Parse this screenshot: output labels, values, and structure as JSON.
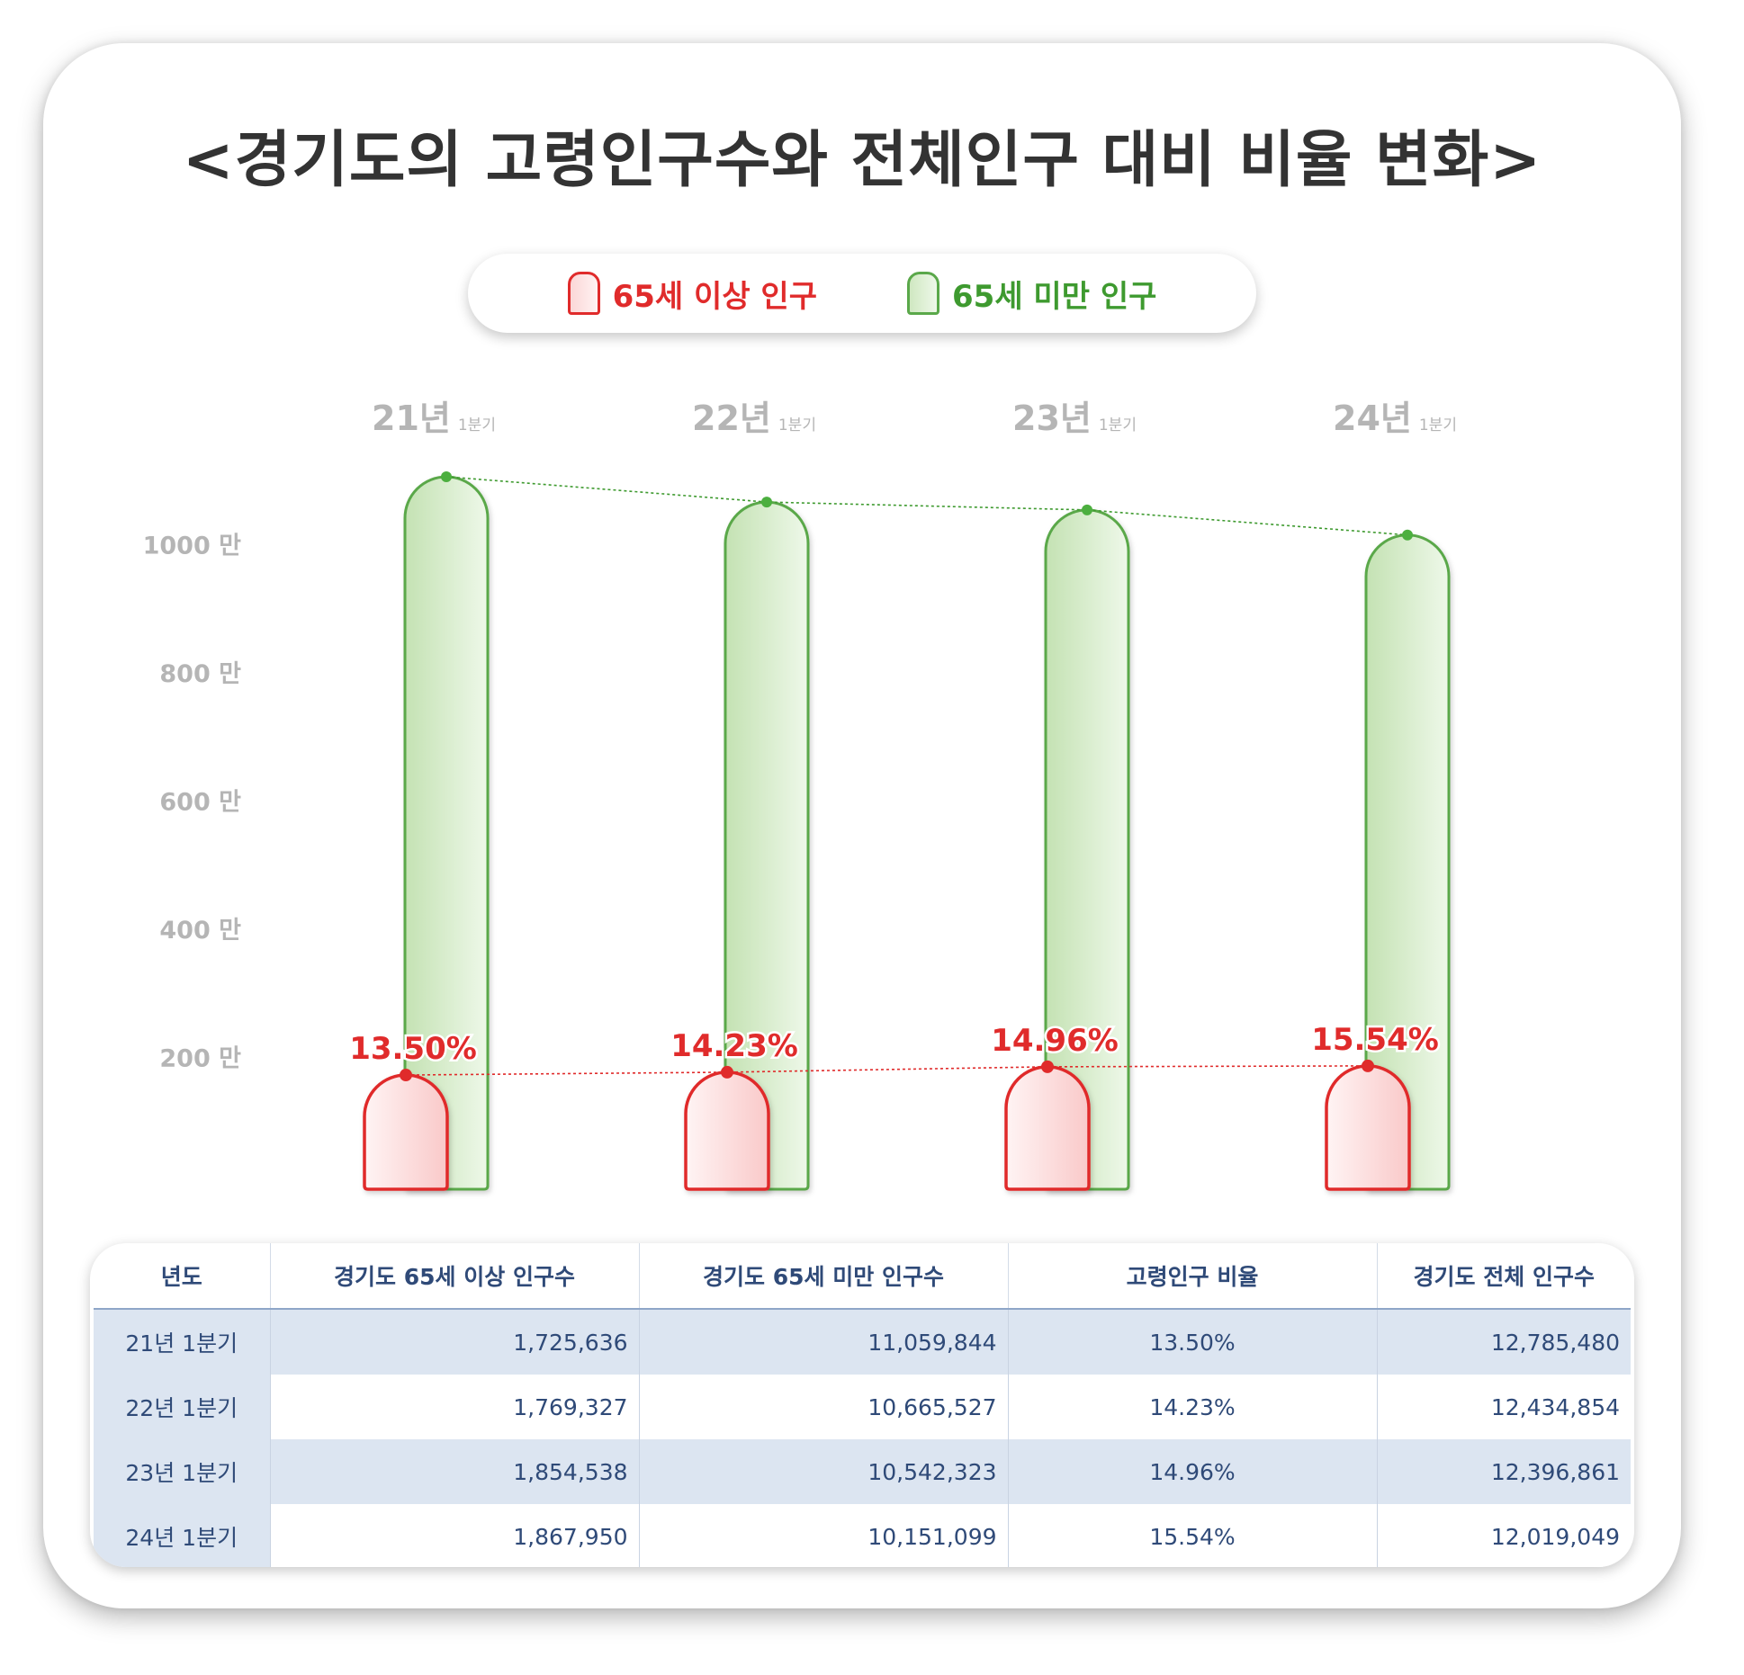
{
  "title": "<경기도의 고령인구수와 전체인구 대비 비율 변화>",
  "legend": {
    "elderly": "65세 이상 인구",
    "non_elderly": "65세 미만 인구"
  },
  "colors": {
    "elderly_stroke": "#e02b2b",
    "elderly_fill": "#fbd7d7",
    "non_elderly_stroke": "#5aa84a",
    "non_elderly_fill": "#cfe8c1",
    "axis_text": "#b5b5b5",
    "table_text": "#2f4a78",
    "table_band": "#dce5f1"
  },
  "chart_data": {
    "type": "bar",
    "categories": [
      {
        "year": "21년",
        "quarter": "1분기"
      },
      {
        "year": "22년",
        "quarter": "1분기"
      },
      {
        "year": "23년",
        "quarter": "1분기"
      },
      {
        "year": "24년",
        "quarter": "1분기"
      }
    ],
    "series": [
      {
        "name": "65세 이상 인구",
        "values": [
          1725636,
          1769327,
          1854538,
          1867950
        ]
      },
      {
        "name": "65세 미만 인구",
        "values": [
          11059844,
          10665527,
          10542323,
          10151099
        ]
      }
    ],
    "ratio_labels": [
      "13.50%",
      "14.23%",
      "14.96%",
      "15.54%"
    ],
    "y_ticks": [
      {
        "value": 2000000,
        "label": "200",
        "unit": "만"
      },
      {
        "value": 4000000,
        "label": "400",
        "unit": "만"
      },
      {
        "value": 6000000,
        "label": "600",
        "unit": "만"
      },
      {
        "value": 8000000,
        "label": "800",
        "unit": "만"
      },
      {
        "value": 10000000,
        "label": "1000",
        "unit": "만"
      }
    ],
    "ylim": [
      0,
      11200000
    ],
    "grid": false,
    "legend_position": "top-center"
  },
  "table": {
    "headers": [
      "년도",
      "경기도 65세 이상 인구수",
      "경기도 65세 미만 인구수",
      "고령인구 비율",
      "경기도 전체 인구수"
    ],
    "rows": [
      [
        "21년 1분기",
        "1,725,636",
        "11,059,844",
        "13.50%",
        "12,785,480"
      ],
      [
        "22년 1분기",
        "1,769,327",
        "10,665,527",
        "14.23%",
        "12,434,854"
      ],
      [
        "23년 1분기",
        "1,854,538",
        "10,542,323",
        "14.96%",
        "12,396,861"
      ],
      [
        "24년 1분기",
        "1,867,950",
        "10,151,099",
        "15.54%",
        "12,019,049"
      ]
    ]
  }
}
